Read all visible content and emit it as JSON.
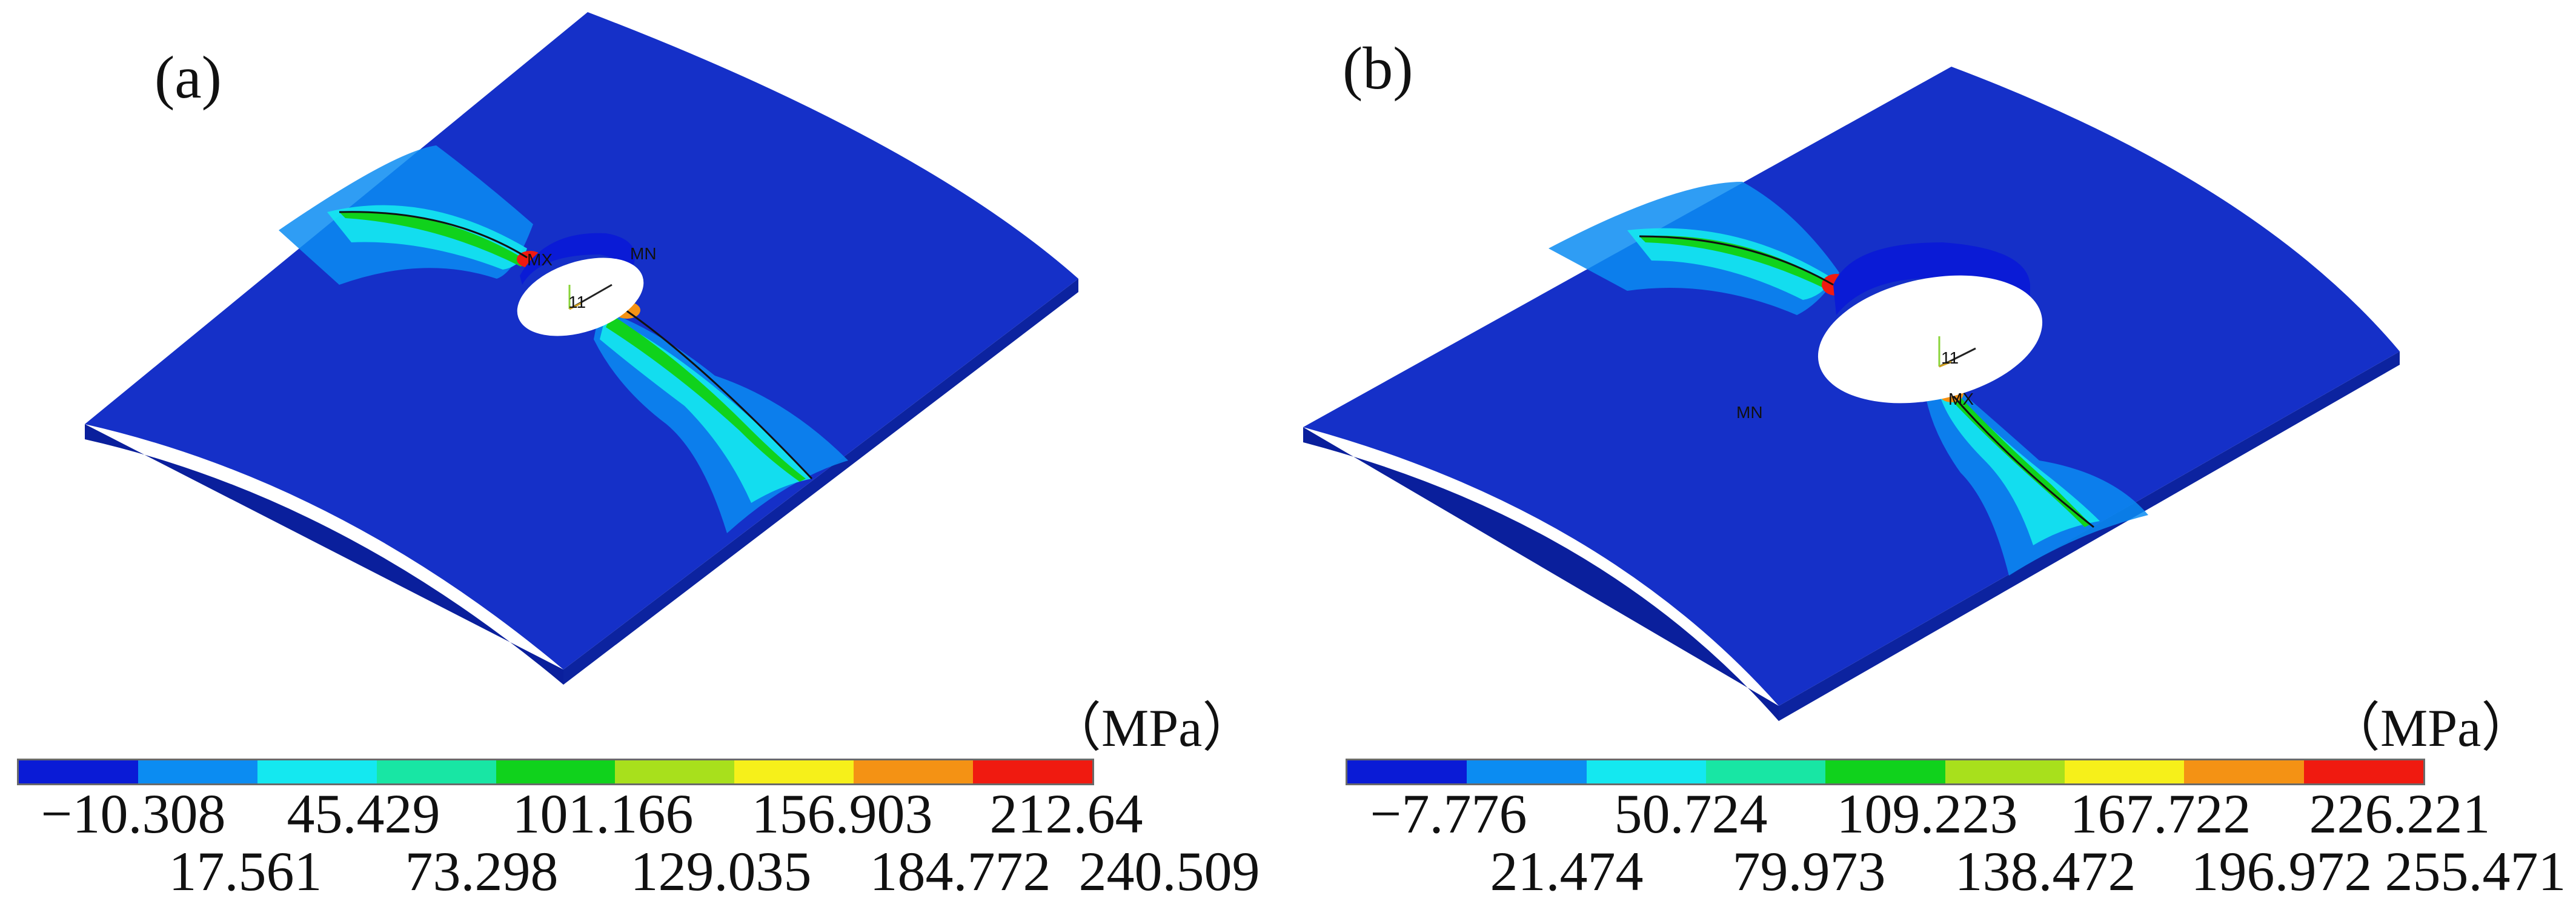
{
  "figure": {
    "panels": [
      {
        "id": "a",
        "label": "(a)",
        "unit": "（MPa）",
        "node_marker": "11",
        "max_marker": "MX",
        "min_marker": "MN",
        "ticks_top": [
          "−10.308",
          "45.429",
          "101.166",
          "156.903",
          "212.64"
        ],
        "ticks_bottom": [
          "17.561",
          "73.298",
          "129.035",
          "184.772",
          "240.509"
        ]
      },
      {
        "id": "b",
        "label": "(b)",
        "unit": "（MPa）",
        "node_marker": "11",
        "max_marker": "MX",
        "min_marker": "MN",
        "ticks_top": [
          "−7.776",
          "50.724",
          "109.223",
          "167.722",
          "226.221"
        ],
        "ticks_bottom": [
          "21.474",
          "79.973",
          "138.472",
          "196.972",
          "255.471"
        ]
      }
    ],
    "colorbar_colors": [
      "#0a1bd6",
      "#0b8cf2",
      "#14e8f0",
      "#18e6a4",
      "#10d21c",
      "#a8e01c",
      "#f6f01a",
      "#f49214",
      "#f01a10"
    ],
    "plate_color": "#1530c8",
    "plate_edge_color": "#0a1f9c"
  }
}
